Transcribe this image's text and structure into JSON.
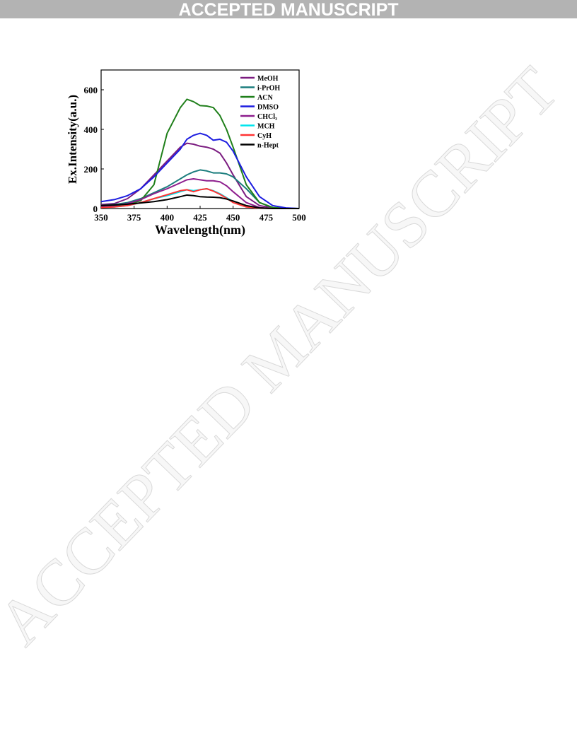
{
  "banner": "ACCEPTED MANUSCRIPT",
  "watermark": "ACCEPTED MANUSCRIPT",
  "chart_data": {
    "type": "line",
    "xlabel": "Wavelength(nm)",
    "ylabel": "Ex.Intensity(a.u.)",
    "x": [
      350,
      360,
      370,
      380,
      390,
      400,
      410,
      415,
      420,
      425,
      430,
      435,
      440,
      445,
      450,
      460,
      470,
      480,
      490,
      500
    ],
    "xlim": [
      350,
      500
    ],
    "xticks": [
      350,
      375,
      400,
      425,
      450,
      475,
      500
    ],
    "ylim": [
      0,
      700
    ],
    "yticks": [
      0,
      200,
      400,
      600
    ],
    "legend": "upper right",
    "series": [
      {
        "name": "MeOH",
        "color": "#7b1c80",
        "values": [
          20,
          25,
          50,
          100,
          170,
          240,
          310,
          330,
          325,
          315,
          310,
          300,
          280,
          230,
          170,
          60,
          15,
          3,
          0,
          0
        ]
      },
      {
        "name": "i-PrOH",
        "color": "#1b7d7d",
        "values": [
          15,
          20,
          30,
          50,
          80,
          110,
          150,
          170,
          185,
          195,
          190,
          180,
          180,
          175,
          160,
          100,
          30,
          5,
          0,
          0
        ]
      },
      {
        "name": "ACN",
        "color": "#1f7f1a",
        "values": [
          10,
          12,
          20,
          40,
          120,
          380,
          510,
          552,
          540,
          520,
          518,
          510,
          470,
          400,
          310,
          120,
          30,
          5,
          2,
          0
        ]
      },
      {
        "name": "DMSO",
        "color": "#1c1ce0",
        "values": [
          35,
          45,
          65,
          100,
          160,
          230,
          300,
          350,
          370,
          380,
          370,
          345,
          350,
          335,
          290,
          160,
          60,
          15,
          3,
          0
        ]
      },
      {
        "name": "CHCl₃",
        "color": "#8d1d8d",
        "values": [
          10,
          15,
          25,
          45,
          75,
          100,
          130,
          145,
          150,
          145,
          140,
          140,
          135,
          115,
          85,
          30,
          5,
          0,
          0,
          0
        ]
      },
      {
        "name": "MCH",
        "color": "#00e5ee",
        "values": [
          5,
          8,
          15,
          30,
          50,
          65,
          85,
          95,
          90,
          95,
          100,
          90,
          75,
          55,
          35,
          10,
          2,
          0,
          0,
          0
        ]
      },
      {
        "name": "CyH",
        "color": "#ff3333",
        "values": [
          5,
          8,
          15,
          30,
          50,
          70,
          90,
          95,
          85,
          95,
          100,
          88,
          72,
          52,
          30,
          8,
          2,
          0,
          0,
          0
        ]
      },
      {
        "name": "n-Hept",
        "color": "#000000",
        "values": [
          15,
          18,
          22,
          28,
          35,
          45,
          60,
          68,
          65,
          60,
          58,
          57,
          55,
          48,
          38,
          15,
          3,
          0,
          0,
          0
        ]
      }
    ]
  }
}
